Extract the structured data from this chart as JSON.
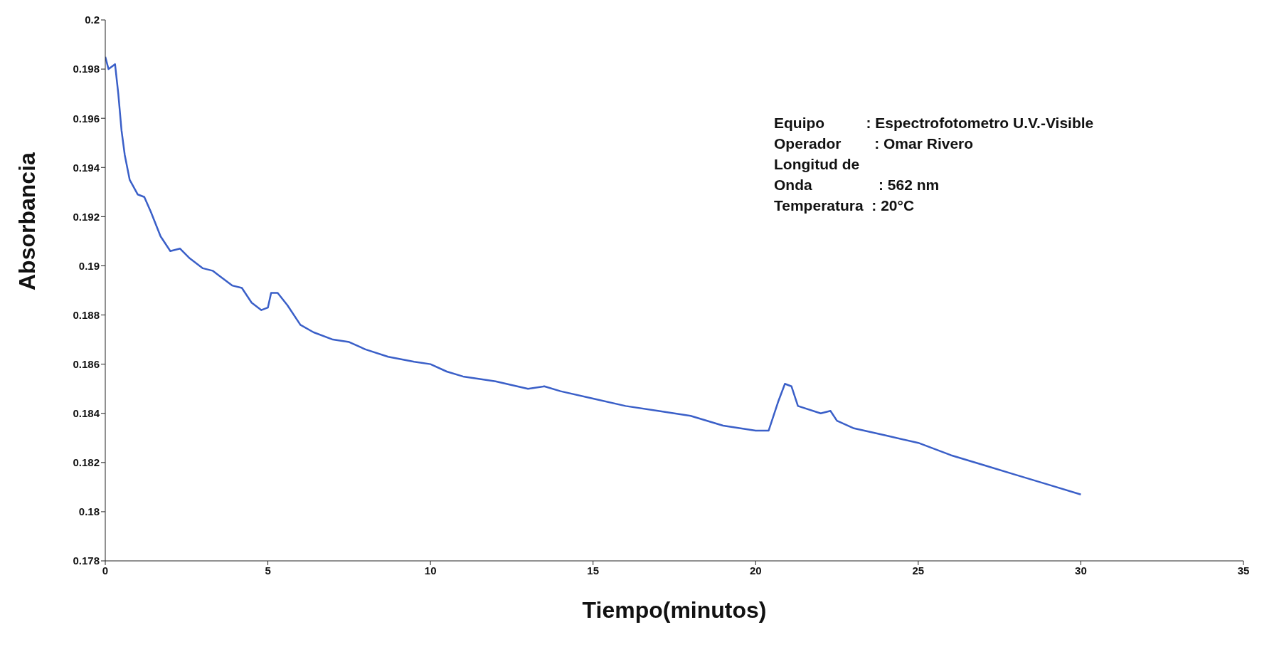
{
  "chart_data": {
    "type": "line",
    "xlabel": "Tiempo(minutos)",
    "ylabel": "Absorbancia",
    "annotations": [
      "Equipo          : Espectrofotometro U.V.-Visible",
      "Operador        : Omar Rivero",
      "Longitud de",
      "Onda                : 562 nm",
      "Temperatura  : 20°C"
    ],
    "series": [
      {
        "color": "#3a5fc8",
        "x": [
          0,
          0.1,
          0.3,
          0.4,
          0.5,
          0.6,
          0.75,
          1.0,
          1.2,
          1.4,
          1.7,
          2.0,
          2.3,
          2.6,
          3.0,
          3.3,
          3.5,
          3.9,
          4.2,
          4.5,
          4.8,
          5.0,
          5.1,
          5.3,
          5.6,
          6.0,
          6.4,
          7.0,
          7.5,
          8.0,
          8.7,
          9.5,
          10.0,
          10.5,
          11.0,
          12.0,
          13.0,
          13.5,
          14.0,
          15.0,
          16.0,
          17.0,
          18.0,
          19.0,
          20.0,
          20.4,
          20.7,
          20.9,
          21.1,
          21.3,
          22.0,
          22.3,
          22.5,
          23.0,
          24.0,
          25.0,
          26.0,
          27.0,
          28.0,
          29.0,
          30.0
        ],
        "values": [
          0.1985,
          0.198,
          0.1982,
          0.197,
          0.1955,
          0.1945,
          0.1935,
          0.1929,
          0.1928,
          0.1922,
          0.1912,
          0.1906,
          0.1907,
          0.1903,
          0.1899,
          0.1898,
          0.1896,
          0.1892,
          0.1891,
          0.1885,
          0.1882,
          0.1883,
          0.1889,
          0.1889,
          0.1884,
          0.1876,
          0.1873,
          0.187,
          0.1869,
          0.1866,
          0.1863,
          0.1861,
          0.186,
          0.1857,
          0.1855,
          0.1853,
          0.185,
          0.1851,
          0.1849,
          0.1846,
          0.1843,
          0.1841,
          0.1839,
          0.1835,
          0.1833,
          0.1833,
          0.1845,
          0.1852,
          0.1851,
          0.1843,
          0.184,
          0.1841,
          0.1837,
          0.1834,
          0.1831,
          0.1828,
          0.1823,
          0.1819,
          0.1815,
          0.1811,
          0.1807
        ]
      }
    ],
    "xlim": [
      0,
      35
    ],
    "xticks": [
      0,
      5,
      10,
      15,
      20,
      25,
      30,
      35
    ],
    "ylim": [
      0.178,
      0.2
    ],
    "yticks": [
      0.178,
      0.18,
      0.182,
      0.184,
      0.186,
      0.188,
      0.19,
      0.192,
      0.194,
      0.196,
      0.198,
      0.2
    ],
    "grid": false,
    "marker": "none",
    "line_style": "solid"
  }
}
